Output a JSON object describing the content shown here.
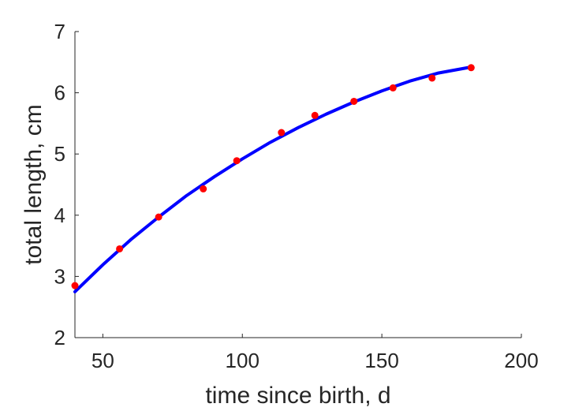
{
  "chart_data": {
    "type": "scatter",
    "xlabel": "time since birth, d",
    "ylabel": "total length, cm",
    "xlim": [
      40,
      200
    ],
    "ylim": [
      2,
      7
    ],
    "xticks": [
      50,
      100,
      150,
      200
    ],
    "yticks": [
      2,
      3,
      4,
      5,
      6,
      7
    ],
    "grid": false,
    "series": [
      {
        "kind": "points",
        "color": "#ff0000",
        "points": [
          {
            "x": 40,
            "y": 2.85
          },
          {
            "x": 56,
            "y": 3.45
          },
          {
            "x": 70,
            "y": 3.97
          },
          {
            "x": 86,
            "y": 4.43
          },
          {
            "x": 98,
            "y": 4.89
          },
          {
            "x": 114,
            "y": 5.35
          },
          {
            "x": 126,
            "y": 5.63
          },
          {
            "x": 140,
            "y": 5.86
          },
          {
            "x": 154,
            "y": 6.08
          },
          {
            "x": 168,
            "y": 6.24
          },
          {
            "x": 182,
            "y": 6.41
          }
        ]
      },
      {
        "kind": "curve",
        "color": "#0000ff",
        "points": [
          {
            "x": 40,
            "y": 2.75
          },
          {
            "x": 50,
            "y": 3.19
          },
          {
            "x": 60,
            "y": 3.6
          },
          {
            "x": 70,
            "y": 3.97
          },
          {
            "x": 80,
            "y": 4.32
          },
          {
            "x": 90,
            "y": 4.63
          },
          {
            "x": 100,
            "y": 4.92
          },
          {
            "x": 110,
            "y": 5.19
          },
          {
            "x": 120,
            "y": 5.43
          },
          {
            "x": 130,
            "y": 5.65
          },
          {
            "x": 140,
            "y": 5.85
          },
          {
            "x": 150,
            "y": 6.03
          },
          {
            "x": 160,
            "y": 6.19
          },
          {
            "x": 170,
            "y": 6.32
          },
          {
            "x": 182,
            "y": 6.42
          }
        ]
      }
    ]
  }
}
